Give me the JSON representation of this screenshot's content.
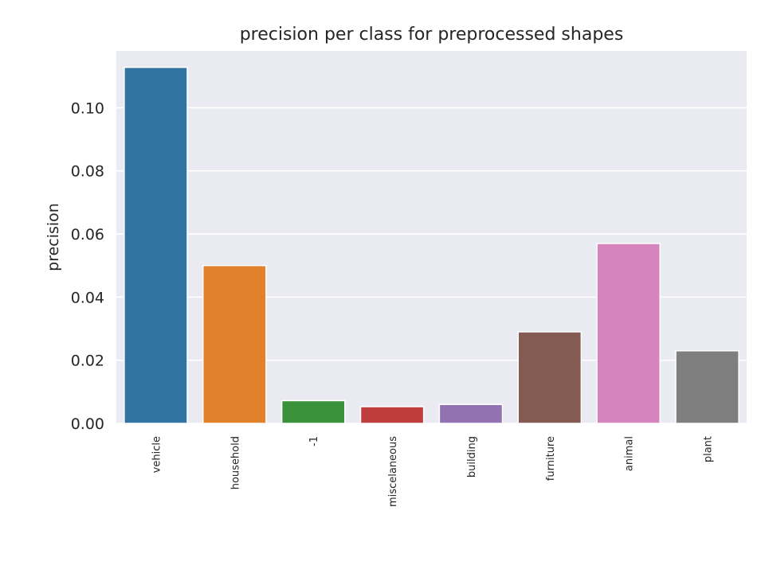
{
  "chart_data": {
    "type": "bar",
    "title": "precision per class for preprocessed shapes",
    "xlabel": "",
    "ylabel": "precision",
    "categories": [
      "vehicle",
      "household",
      "-1",
      "miscelaneous",
      "building",
      "furniture",
      "animal",
      "plant"
    ],
    "values": [
      0.1128,
      0.05,
      0.0072,
      0.0053,
      0.006,
      0.029,
      0.057,
      0.023
    ],
    "colors": [
      "#3274a1",
      "#e1812c",
      "#3a923a",
      "#c03d3e",
      "#9372b2",
      "#845b53",
      "#d684bd",
      "#7f7f7f"
    ],
    "yticks": [
      "0.00",
      "0.02",
      "0.04",
      "0.06",
      "0.08",
      "0.10"
    ],
    "ylim": [
      0,
      0.118
    ],
    "grid": true,
    "background": "#eaeaf2"
  }
}
